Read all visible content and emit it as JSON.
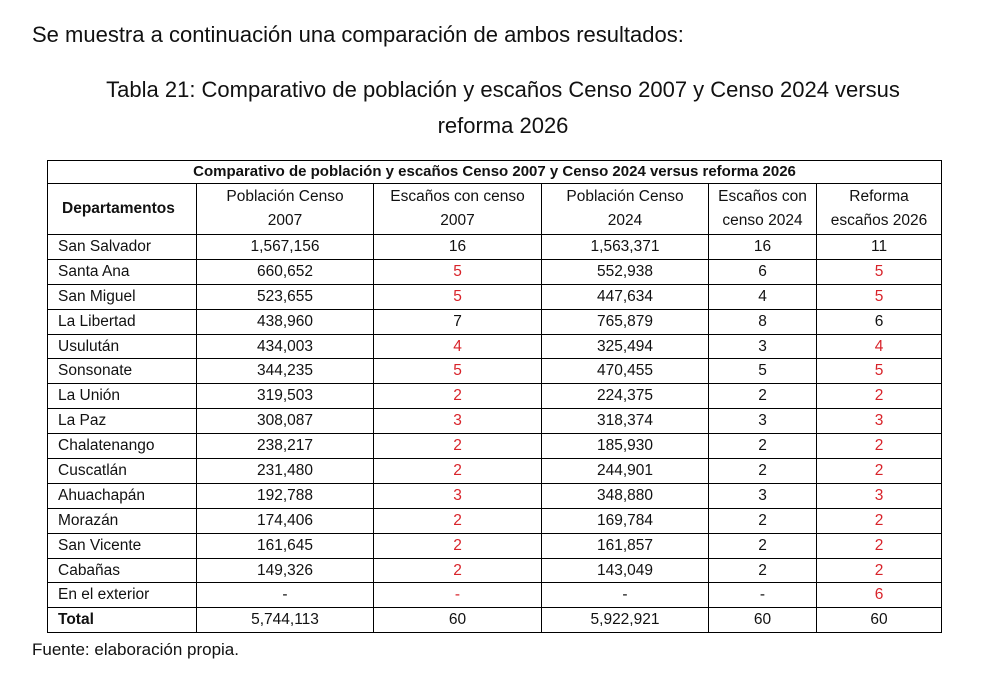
{
  "intro_text": "Se muestra a continuación una comparación de ambos resultados:",
  "caption_line1": "Tabla 21: Comparativo de población y escaños Censo 2007 y Censo 2024 versus",
  "caption_line2": "reforma 2026",
  "table": {
    "title": "Comparativo de población y escaños Censo 2007 y Censo 2024 versus reforma 2026",
    "headers": [
      {
        "line1": "Departamentos",
        "line2": ""
      },
      {
        "line1": "Población Censo",
        "line2": "2007"
      },
      {
        "line1": "Escaños con censo",
        "line2": "2007"
      },
      {
        "line1": "Población Censo",
        "line2": "2024"
      },
      {
        "line1": "Escaños con",
        "line2": "censo 2024"
      },
      {
        "line1": "Reforma",
        "line2": "escaños 2026"
      }
    ],
    "highlight_color": "#d8232a",
    "rows": [
      {
        "dep": "San Salvador",
        "pop2007": "1,567,156",
        "esc2007": "16",
        "esc2007_red": false,
        "pop2024": "1,563,371",
        "esc2024": "16",
        "ref2026": "11",
        "ref2026_red": false
      },
      {
        "dep": "Santa Ana",
        "pop2007": "660,652",
        "esc2007": "5",
        "esc2007_red": true,
        "pop2024": "552,938",
        "esc2024": "6",
        "ref2026": "5",
        "ref2026_red": true
      },
      {
        "dep": "San Miguel",
        "pop2007": "523,655",
        "esc2007": "5",
        "esc2007_red": true,
        "pop2024": "447,634",
        "esc2024": "4",
        "ref2026": "5",
        "ref2026_red": true
      },
      {
        "dep": "La Libertad",
        "pop2007": "438,960",
        "esc2007": "7",
        "esc2007_red": false,
        "pop2024": "765,879",
        "esc2024": "8",
        "ref2026": "6",
        "ref2026_red": false
      },
      {
        "dep": "Usulután",
        "pop2007": "434,003",
        "esc2007": "4",
        "esc2007_red": true,
        "pop2024": "325,494",
        "esc2024": "3",
        "ref2026": "4",
        "ref2026_red": true
      },
      {
        "dep": "Sonsonate",
        "pop2007": "344,235",
        "esc2007": "5",
        "esc2007_red": true,
        "pop2024": "470,455",
        "esc2024": "5",
        "ref2026": "5",
        "ref2026_red": true
      },
      {
        "dep": "La Unión",
        "pop2007": "319,503",
        "esc2007": "2",
        "esc2007_red": true,
        "pop2024": "224,375",
        "esc2024": "2",
        "ref2026": "2",
        "ref2026_red": true
      },
      {
        "dep": "La Paz",
        "pop2007": "308,087",
        "esc2007": "3",
        "esc2007_red": true,
        "pop2024": "318,374",
        "esc2024": "3",
        "ref2026": "3",
        "ref2026_red": true
      },
      {
        "dep": "Chalatenango",
        "pop2007": "238,217",
        "esc2007": "2",
        "esc2007_red": true,
        "pop2024": "185,930",
        "esc2024": "2",
        "ref2026": "2",
        "ref2026_red": true
      },
      {
        "dep": "Cuscatlán",
        "pop2007": "231,480",
        "esc2007": "2",
        "esc2007_red": true,
        "pop2024": "244,901",
        "esc2024": "2",
        "ref2026": "2",
        "ref2026_red": true
      },
      {
        "dep": "Ahuachapán",
        "pop2007": "192,788",
        "esc2007": "3",
        "esc2007_red": true,
        "pop2024": "348,880",
        "esc2024": "3",
        "ref2026": "3",
        "ref2026_red": true
      },
      {
        "dep": "Morazán",
        "pop2007": "174,406",
        "esc2007": "2",
        "esc2007_red": true,
        "pop2024": "169,784",
        "esc2024": "2",
        "ref2026": "2",
        "ref2026_red": true
      },
      {
        "dep": "San Vicente",
        "pop2007": "161,645",
        "esc2007": "2",
        "esc2007_red": true,
        "pop2024": "161,857",
        "esc2024": "2",
        "ref2026": "2",
        "ref2026_red": true
      },
      {
        "dep": "Cabañas",
        "pop2007": "149,326",
        "esc2007": "2",
        "esc2007_red": true,
        "pop2024": "143,049",
        "esc2024": "2",
        "ref2026": "2",
        "ref2026_red": true
      },
      {
        "dep": "En el exterior",
        "pop2007": "-",
        "esc2007": "-",
        "esc2007_red": true,
        "pop2024": "-",
        "esc2024": "-",
        "ref2026": "6",
        "ref2026_red": true
      }
    ],
    "total": {
      "dep": "Total",
      "pop2007": "5,744,113",
      "esc2007": "60",
      "pop2024": "5,922,921",
      "esc2024": "60",
      "ref2026": "60"
    }
  },
  "source_note": "Fuente: elaboración propia."
}
